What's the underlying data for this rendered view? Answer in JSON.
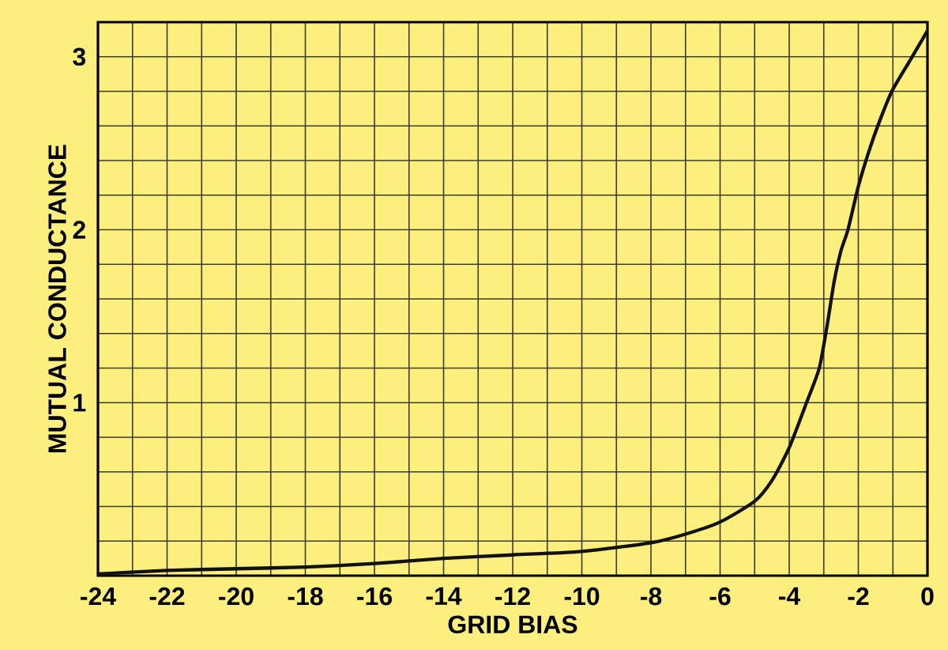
{
  "chart_data": {
    "type": "line",
    "xlabel": "GRID BIAS",
    "ylabel": "MUTUAL CONDUCTANCE",
    "x": [
      -24,
      -22,
      -20,
      -18,
      -16,
      -14,
      -12,
      -10,
      -8,
      -7,
      -6,
      -5,
      -4.5,
      -4,
      -3.5,
      -3.13,
      -2.9,
      -2.7,
      -2.5,
      -2.3,
      -2,
      -1.7,
      -1.4,
      -1.03,
      -0.5,
      0
    ],
    "series": [
      {
        "color": "#111111",
        "values": [
          0.01,
          0.03,
          0.04,
          0.05,
          0.07,
          0.1,
          0.12,
          0.14,
          0.19,
          0.24,
          0.31,
          0.43,
          0.55,
          0.74,
          1.0,
          1.2,
          1.45,
          1.7,
          1.88,
          2.0,
          2.25,
          2.45,
          2.62,
          2.8,
          2.98,
          3.15
        ]
      }
    ],
    "xlim": [
      -24,
      0
    ],
    "ylim": [
      0,
      3.2
    ],
    "xticks": [
      -24,
      {
        "value": -23,
        "label": null
      },
      -22,
      {
        "value": -21,
        "label": null
      },
      -20,
      {
        "value": -19,
        "label": null
      },
      -18,
      {
        "value": -17,
        "label": null
      },
      -16,
      {
        "value": -15,
        "label": null
      },
      -14,
      {
        "value": -13,
        "label": null
      },
      -12,
      {
        "value": -11,
        "label": null
      },
      -10,
      {
        "value": -9,
        "label": null
      },
      -8,
      {
        "value": -7,
        "label": null
      },
      -6,
      {
        "value": -5,
        "label": null
      },
      -4,
      {
        "value": -3,
        "label": null
      },
      -2,
      {
        "value": -1,
        "label": null
      },
      0
    ],
    "yticks": [
      {
        "value": 0.2,
        "label": null
      },
      {
        "value": 0.4,
        "label": null
      },
      {
        "value": 0.6,
        "label": null
      },
      {
        "value": 0.8,
        "label": null
      },
      1,
      {
        "value": 1.2,
        "label": null
      },
      {
        "value": 1.4,
        "label": null
      },
      {
        "value": 1.6,
        "label": null
      },
      {
        "value": 1.8,
        "label": null
      },
      2,
      {
        "value": 2.2,
        "label": null
      },
      {
        "value": 2.4,
        "label": null
      },
      {
        "value": 2.6,
        "label": null
      },
      {
        "value": 2.8,
        "label": null
      },
      3,
      {
        "value": 3.2,
        "label": null
      }
    ],
    "grid": true,
    "marker": "none",
    "line_style": "solid"
  }
}
